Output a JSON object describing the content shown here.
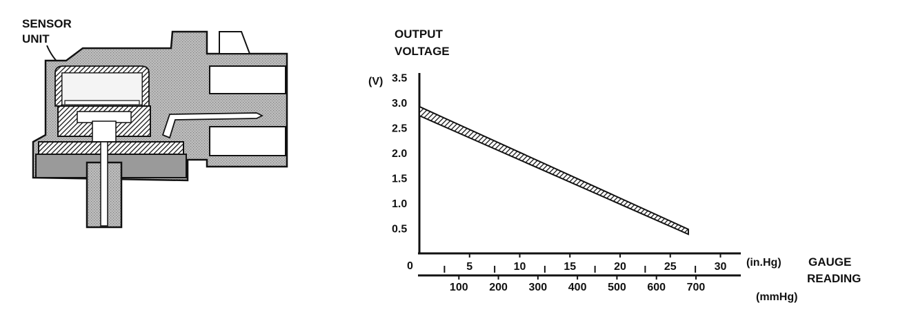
{
  "sensor": {
    "label_line1": "SENSOR",
    "label_line2": "UNIT"
  },
  "chart_data": {
    "type": "line",
    "title_line1": "OUTPUT",
    "title_line2": "VOLTAGE",
    "y_unit": "(V)",
    "y_ticks": [
      "3.5",
      "3.0",
      "2.5",
      "2.0",
      "1.5",
      "1.0",
      "0.5"
    ],
    "y_tick_values": [
      3.5,
      3.0,
      2.5,
      2.0,
      1.5,
      1.0,
      0.5
    ],
    "origin_label": "0",
    "x_inhg_ticks": [
      "5",
      "10",
      "15",
      "20",
      "25",
      "30"
    ],
    "x_inhg_values": [
      5,
      10,
      15,
      20,
      25,
      30
    ],
    "x_inhg_unit": "(in.Hg)",
    "x_mmhg_ticks": [
      "100",
      "200",
      "300",
      "400",
      "500",
      "600",
      "700"
    ],
    "x_mmhg_values": [
      100,
      200,
      300,
      400,
      500,
      600,
      700
    ],
    "x_mmhg_unit": "(mmHg)",
    "xlabel_line1": "GAUGE",
    "xlabel_line2": "READING",
    "xlim_inhg": [
      0,
      32
    ],
    "ylim": [
      0,
      3.7
    ],
    "series": [
      {
        "x_inhg": [
          0,
          26.8
        ],
        "y_upper": [
          2.92,
          0.48
        ],
        "y_lower": [
          2.74,
          0.38
        ]
      }
    ]
  }
}
